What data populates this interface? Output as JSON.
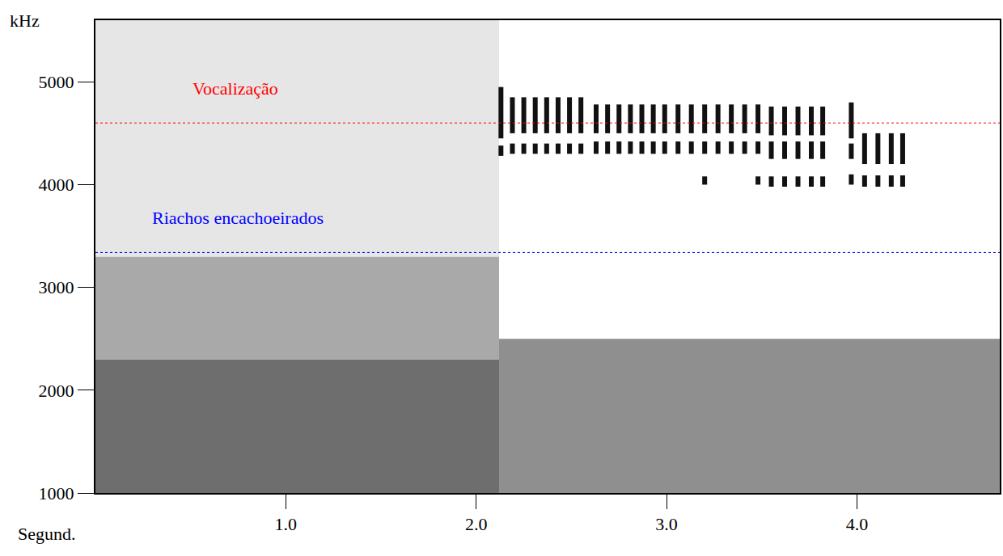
{
  "chart_data": {
    "type": "spectrogram",
    "y_label": "kHz",
    "x_label": "Segund.",
    "xlim": [
      0,
      4.75
    ],
    "xticks": [
      {
        "value": 1,
        "label": "1.0"
      },
      {
        "value": 2,
        "label": "2.0"
      },
      {
        "value": 3,
        "label": "3.0"
      },
      {
        "value": 4,
        "label": "4.0"
      }
    ],
    "ylim": [
      1000,
      5600
    ],
    "yticks": [
      1000,
      2000,
      3000,
      4000,
      5000
    ],
    "grid": false,
    "color": "#111111",
    "regions": [
      {
        "x": [
          0,
          2.12
        ],
        "y": [
          1000,
          2300
        ],
        "color": "#6e6e6e"
      },
      {
        "x": [
          0,
          2.12
        ],
        "y": [
          2300,
          3300
        ],
        "color": "#a9a9a9"
      },
      {
        "x": [
          0,
          2.12
        ],
        "y": [
          3300,
          5600
        ],
        "color": "#e6e6e6"
      },
      {
        "x": [
          2.12,
          4.75
        ],
        "y": [
          1000,
          2500
        ],
        "color": "#8f8f8f"
      }
    ],
    "reference_lines": [
      {
        "y": 4600,
        "color": "#ff0000",
        "label": "Vocalização",
        "x": 0.5
      },
      {
        "y": 3340,
        "color": "#0000ff",
        "label": "Riachos encachoeirados",
        "x": 0.29
      }
    ],
    "notes": [
      {
        "t": 2.13,
        "bands": [
          [
            4450,
            4950
          ],
          [
            4280,
            4380
          ]
        ]
      },
      {
        "t": 2.19,
        "bands": [
          [
            4500,
            4850
          ],
          [
            4300,
            4400
          ]
        ]
      },
      {
        "t": 2.25,
        "bands": [
          [
            4500,
            4850
          ],
          [
            4300,
            4400
          ]
        ]
      },
      {
        "t": 2.31,
        "bands": [
          [
            4500,
            4850
          ],
          [
            4300,
            4400
          ]
        ]
      },
      {
        "t": 2.37,
        "bands": [
          [
            4500,
            4850
          ],
          [
            4300,
            4400
          ]
        ]
      },
      {
        "t": 2.43,
        "bands": [
          [
            4500,
            4850
          ],
          [
            4300,
            4400
          ]
        ]
      },
      {
        "t": 2.49,
        "bands": [
          [
            4500,
            4850
          ],
          [
            4300,
            4400
          ]
        ]
      },
      {
        "t": 2.55,
        "bands": [
          [
            4500,
            4850
          ],
          [
            4300,
            4400
          ]
        ]
      },
      {
        "t": 2.63,
        "bands": [
          [
            4500,
            4780
          ],
          [
            4300,
            4420
          ]
        ]
      },
      {
        "t": 2.69,
        "bands": [
          [
            4500,
            4780
          ],
          [
            4300,
            4420
          ]
        ]
      },
      {
        "t": 2.75,
        "bands": [
          [
            4500,
            4780
          ],
          [
            4300,
            4420
          ]
        ]
      },
      {
        "t": 2.81,
        "bands": [
          [
            4500,
            4780
          ],
          [
            4300,
            4420
          ]
        ]
      },
      {
        "t": 2.87,
        "bands": [
          [
            4500,
            4780
          ],
          [
            4300,
            4420
          ]
        ]
      },
      {
        "t": 2.93,
        "bands": [
          [
            4500,
            4780
          ],
          [
            4300,
            4420
          ]
        ]
      },
      {
        "t": 2.99,
        "bands": [
          [
            4500,
            4780
          ],
          [
            4300,
            4420
          ]
        ]
      },
      {
        "t": 3.06,
        "bands": [
          [
            4500,
            4780
          ],
          [
            4300,
            4420
          ]
        ]
      },
      {
        "t": 3.13,
        "bands": [
          [
            4500,
            4780
          ],
          [
            4300,
            4420
          ]
        ]
      },
      {
        "t": 3.2,
        "bands": [
          [
            4500,
            4780
          ],
          [
            4300,
            4420
          ],
          [
            4000,
            4080
          ]
        ]
      },
      {
        "t": 3.27,
        "bands": [
          [
            4500,
            4780
          ],
          [
            4300,
            4420
          ]
        ]
      },
      {
        "t": 3.34,
        "bands": [
          [
            4500,
            4780
          ],
          [
            4300,
            4420
          ]
        ]
      },
      {
        "t": 3.41,
        "bands": [
          [
            4500,
            4780
          ],
          [
            4300,
            4420
          ]
        ]
      },
      {
        "t": 3.48,
        "bands": [
          [
            4500,
            4780
          ],
          [
            4300,
            4420
          ],
          [
            4000,
            4080
          ]
        ]
      },
      {
        "t": 3.55,
        "bands": [
          [
            4480,
            4760
          ],
          [
            4250,
            4420
          ],
          [
            3980,
            4080
          ]
        ]
      },
      {
        "t": 3.62,
        "bands": [
          [
            4480,
            4760
          ],
          [
            4250,
            4420
          ],
          [
            3980,
            4080
          ]
        ]
      },
      {
        "t": 3.69,
        "bands": [
          [
            4480,
            4760
          ],
          [
            4250,
            4420
          ],
          [
            3980,
            4080
          ]
        ]
      },
      {
        "t": 3.76,
        "bands": [
          [
            4480,
            4760
          ],
          [
            4250,
            4420
          ],
          [
            3980,
            4080
          ]
        ]
      },
      {
        "t": 3.82,
        "bands": [
          [
            4480,
            4760
          ],
          [
            4250,
            4420
          ],
          [
            3980,
            4080
          ]
        ]
      },
      {
        "t": 3.97,
        "bands": [
          [
            4450,
            4800
          ],
          [
            4250,
            4400
          ],
          [
            4000,
            4100
          ]
        ]
      },
      {
        "t": 4.04,
        "bands": [
          [
            4200,
            4500
          ],
          [
            3980,
            4090
          ]
        ]
      },
      {
        "t": 4.11,
        "bands": [
          [
            4200,
            4500
          ],
          [
            3980,
            4090
          ]
        ]
      },
      {
        "t": 4.18,
        "bands": [
          [
            4200,
            4500
          ],
          [
            3980,
            4090
          ]
        ]
      },
      {
        "t": 4.24,
        "bands": [
          [
            4200,
            4500
          ],
          [
            3980,
            4090
          ]
        ]
      }
    ]
  }
}
